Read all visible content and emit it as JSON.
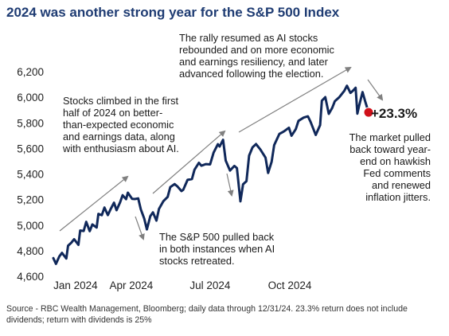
{
  "title": "2024 was another strong year for the S&P 500 Index",
  "source": "Source - RBC Wealth Management, Bloomberg; daily data through 12/31/24. 23.3% return does not include dividends; return with dividends is 25%",
  "colors": {
    "title": "#1f3c73",
    "line": "#10285a",
    "arrow": "#808080",
    "end_marker": "#d0101a"
  },
  "chart_data": {
    "type": "line",
    "title": "2024 was another strong year for the S&P 500 Index",
    "xlabel": "",
    "ylabel": "",
    "ylim": [
      4600,
      6200
    ],
    "yticks": [
      4600,
      4800,
      5000,
      5200,
      5400,
      5600,
      5800,
      6000,
      6200
    ],
    "ytick_labels": [
      "4,600",
      "4,800",
      "5,000",
      "5,200",
      "5,400",
      "5,600",
      "5,800",
      "6,000",
      "6,200"
    ],
    "xlim": [
      "2024-01-02",
      "2024-12-31"
    ],
    "xticks": [
      "2024-01-01",
      "2024-04-01",
      "2024-07-01",
      "2024-10-01"
    ],
    "xtick_labels": [
      "Jan 2024",
      "Apr 2024",
      "Jul 2024",
      "Oct 2024"
    ],
    "grid": false,
    "series": [
      {
        "x": [
          "2024-01-02",
          "2024-01-05",
          "2024-01-09",
          "2024-01-12",
          "2024-01-17",
          "2024-01-19",
          "2024-01-23",
          "2024-01-26",
          "2024-01-31",
          "2024-02-02",
          "2024-02-06",
          "2024-02-09",
          "2024-02-13",
          "2024-02-16",
          "2024-02-21",
          "2024-02-23",
          "2024-02-27",
          "2024-03-01",
          "2024-03-05",
          "2024-03-08",
          "2024-03-12",
          "2024-03-15",
          "2024-03-19",
          "2024-03-22",
          "2024-03-26",
          "2024-03-28",
          "2024-04-02",
          "2024-04-05",
          "2024-04-09",
          "2024-04-12",
          "2024-04-16",
          "2024-04-19",
          "2024-04-23",
          "2024-04-26",
          "2024-04-30",
          "2024-05-03",
          "2024-05-08",
          "2024-05-13",
          "2024-05-16",
          "2024-05-21",
          "2024-05-24",
          "2024-05-29",
          "2024-05-31",
          "2024-06-05",
          "2024-06-10",
          "2024-06-13",
          "2024-06-18",
          "2024-06-21",
          "2024-06-26",
          "2024-07-01",
          "2024-07-05",
          "2024-07-10",
          "2024-07-12",
          "2024-07-16",
          "2024-07-19",
          "2024-07-24",
          "2024-07-29",
          "2024-08-01",
          "2024-08-05",
          "2024-08-08",
          "2024-08-12",
          "2024-08-15",
          "2024-08-19",
          "2024-08-23",
          "2024-08-28",
          "2024-09-03",
          "2024-09-06",
          "2024-09-10",
          "2024-09-13",
          "2024-09-19",
          "2024-09-24",
          "2024-09-30",
          "2024-10-03",
          "2024-10-08",
          "2024-10-11",
          "2024-10-17",
          "2024-10-22",
          "2024-10-25",
          "2024-10-31",
          "2024-11-05",
          "2024-11-07",
          "2024-11-11",
          "2024-11-15",
          "2024-11-19",
          "2024-11-22",
          "2024-11-27",
          "2024-12-03",
          "2024-12-06",
          "2024-12-10",
          "2024-12-13",
          "2024-12-16",
          "2024-12-18",
          "2024-12-20",
          "2024-12-24",
          "2024-12-27",
          "2024-12-31"
        ],
        "values": [
          4742,
          4697,
          4756,
          4783,
          4739,
          4839,
          4864,
          4890,
          4846,
          4958,
          4954,
          5026,
          4953,
          5005,
          4981,
          5088,
          5078,
          5137,
          5079,
          5123,
          5175,
          5117,
          5178,
          5234,
          5203,
          5254,
          5205,
          5204,
          5209,
          5123,
          5051,
          4967,
          5070,
          5100,
          5035,
          5127,
          5187,
          5221,
          5297,
          5321,
          5304,
          5266,
          5277,
          5354,
          5360,
          5433,
          5487,
          5465,
          5477,
          5475,
          5567,
          5633,
          5615,
          5667,
          5505,
          5427,
          5463,
          5446,
          5186,
          5319,
          5344,
          5543,
          5608,
          5634,
          5592,
          5528,
          5408,
          5495,
          5626,
          5713,
          5732,
          5762,
          5699,
          5751,
          5815,
          5841,
          5851,
          5808,
          5705,
          5782,
          5973,
          6001,
          5870,
          5917,
          5969,
          5999,
          6050,
          6090,
          6034,
          6051,
          6074,
          5872,
          5931,
          6040,
          5970,
          5882
        ]
      }
    ],
    "end_label": "+23.3%",
    "annotations": [
      "Stocks climbed in the first half of 2024 on better-than-expected economic and earnings data, along with enthusiasm about AI.",
      "The S&P 500 pulled back in both instances when AI stocks retreated.",
      "The rally resumed as AI stocks rebounded and on more economic and earnings resiliency, and later advanced following the election.",
      "The market pulled back toward year-end on hawkish Fed comments and renewed inflation jitters."
    ]
  }
}
